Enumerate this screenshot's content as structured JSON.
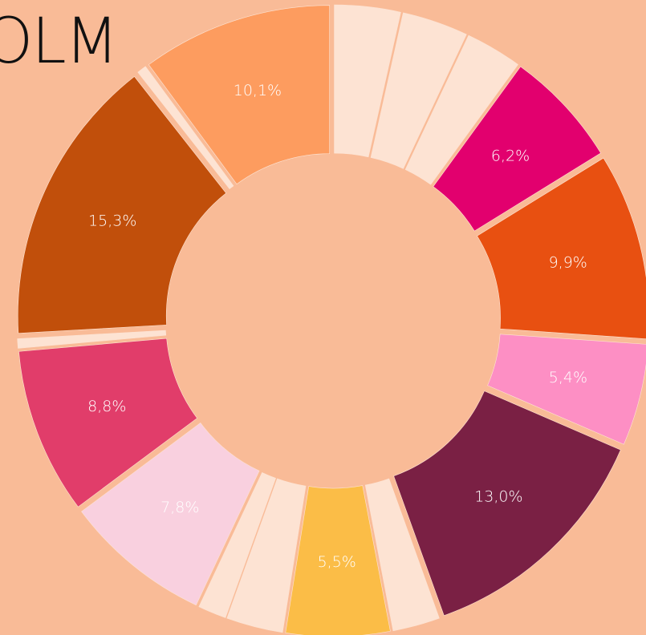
{
  "chart_data": {
    "type": "donut",
    "title": "OLM",
    "values": [
      3.5,
      3.5,
      3.0,
      6.2,
      9.9,
      5.4,
      13.0,
      2.5,
      5.5,
      3.0,
      1.5,
      7.8,
      8.8,
      0.5,
      15.3,
      0.5,
      10.1
    ],
    "value_labels": [
      null,
      null,
      null,
      "6,2%",
      "9,9%",
      "5,4%",
      "13,0%",
      null,
      "5,5%",
      null,
      null,
      "7,8%",
      "8,8%",
      null,
      "15,3%",
      null,
      "10,1%"
    ],
    "colors": [
      "#fde3d3",
      "#fde3d3",
      "#fde3d3",
      "#e2006e",
      "#e85011",
      "#fd8fc4",
      "#7a2044",
      "#fde3d3",
      "#fbbd47",
      "#fde3d3",
      "#fde3d3",
      "#f9d0df",
      "#e13d6a",
      "#fde3d3",
      "#c14f0b",
      "#fde3d3",
      "#fd9c5f"
    ]
  }
}
